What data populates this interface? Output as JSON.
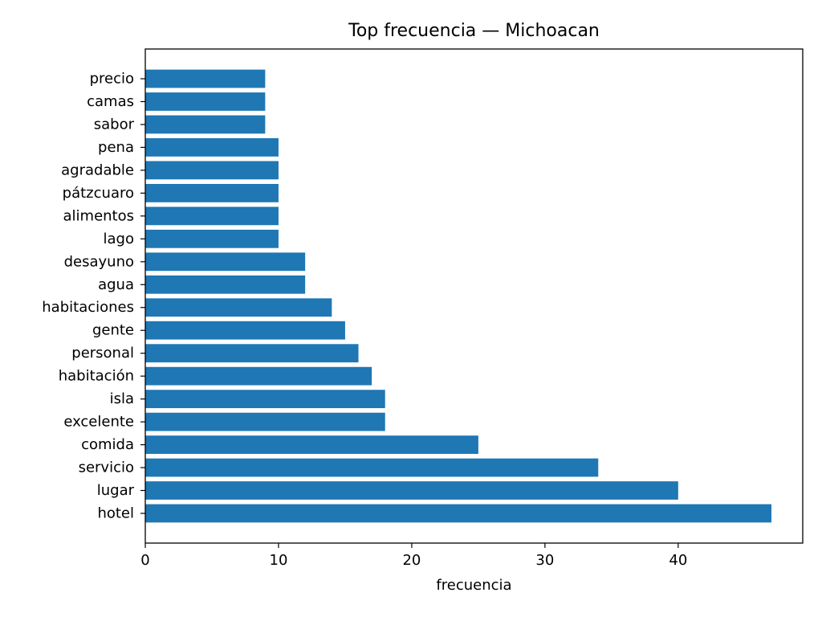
{
  "chart_data": {
    "type": "bar",
    "orientation": "horizontal",
    "title": "Top frecuencia — Michoacan",
    "xlabel": "frecuencia",
    "ylabel": "",
    "categories": [
      "hotel",
      "lugar",
      "servicio",
      "comida",
      "excelente",
      "isla",
      "habitación",
      "personal",
      "gente",
      "habitaciones",
      "agua",
      "desayuno",
      "lago",
      "alimentos",
      "pátzcuaro",
      "agradable",
      "pena",
      "sabor",
      "camas",
      "precio"
    ],
    "values": [
      47,
      40,
      34,
      25,
      18,
      18,
      17,
      16,
      15,
      14,
      12,
      12,
      10,
      10,
      10,
      10,
      10,
      9,
      9,
      9
    ],
    "xlim": [
      0,
      49.35
    ],
    "xticks": [
      0,
      10,
      20,
      30,
      40
    ],
    "grid": false,
    "legend": "none",
    "bar_color": "#1f77b4"
  }
}
